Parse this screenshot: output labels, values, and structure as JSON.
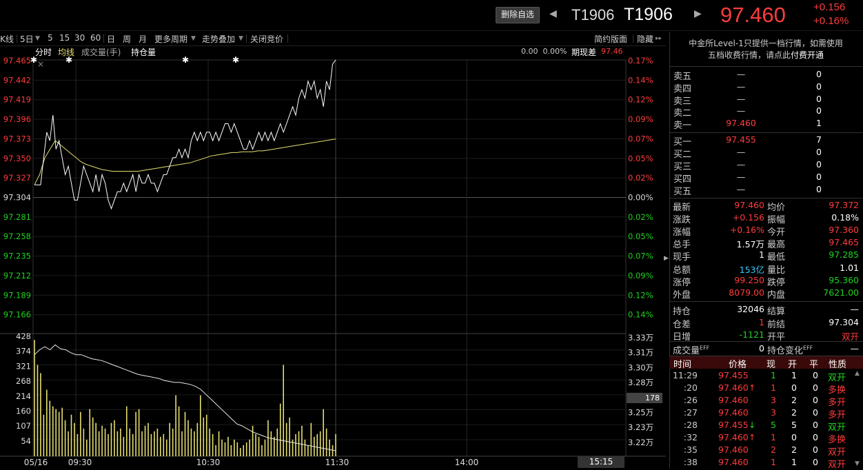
{
  "header": {
    "remove_watch_label": "删除自选",
    "code_small": "T1906",
    "code_large": "T1906",
    "last_price": "97.460",
    "change": "+0.156",
    "change_pct": "+0.16%"
  },
  "toolbar": {
    "items": [
      "K线",
      "5日",
      "5",
      "15",
      "30",
      "60",
      "日",
      "周",
      "月",
      "更多周期",
      "走势叠加",
      "关闭竞价"
    ],
    "right_items": [
      "简约版面",
      "隐藏"
    ]
  },
  "chart_header": {
    "tabs": [
      "分时",
      "均线",
      "成交量(手)",
      "持仓量"
    ],
    "readout": "0.00  0.00%",
    "basis_label": "期现差",
    "basis_value": "97.46"
  },
  "price_axis": [
    "97.465",
    "97.442",
    "97.419",
    "97.396",
    "97.373",
    "97.350",
    "97.327",
    "97.304",
    "97.281",
    "97.258",
    "97.235",
    "97.212",
    "97.189",
    "97.166"
  ],
  "pct_axis": [
    "0.17%",
    "0.14%",
    "0.12%",
    "0.09%",
    "0.07%",
    "0.05%",
    "0.02%",
    "0.00%",
    "0.02%",
    "0.05%",
    "0.07%",
    "0.09%",
    "0.12%",
    "0.14%"
  ],
  "vol_axis": [
    "428",
    "374",
    "321",
    "268",
    "214",
    "160",
    "107",
    "54"
  ],
  "oi_axis": [
    "3.33万",
    "3.31万",
    "3.30万",
    "3.28万",
    "3.26万",
    "3.25万",
    "3.23万",
    "3.22万"
  ],
  "vol_cursor": "178",
  "time_axis": [
    "05/16",
    "09:30",
    "10:30",
    "11:30",
    "14:00",
    "15:15"
  ],
  "panel": {
    "notice_line1": "中金所Level-1只提供一档行情，如需使用",
    "notice_line2": "五档收费行情，请点此",
    "notice_link": "付费开通",
    "asks": [
      {
        "label": "卖五",
        "price": "—",
        "vol": "0"
      },
      {
        "label": "卖四",
        "price": "—",
        "vol": "0"
      },
      {
        "label": "卖三",
        "price": "—",
        "vol": "0"
      },
      {
        "label": "卖二",
        "price": "—",
        "vol": "0"
      },
      {
        "label": "卖一",
        "price": "97.460",
        "vol": "1"
      }
    ],
    "bids": [
      {
        "label": "买一",
        "price": "97.455",
        "vol": "7"
      },
      {
        "label": "买二",
        "price": "—",
        "vol": "0"
      },
      {
        "label": "买三",
        "price": "—",
        "vol": "0"
      },
      {
        "label": "买四",
        "price": "—",
        "vol": "0"
      },
      {
        "label": "买五",
        "price": "—",
        "vol": "0"
      }
    ],
    "stats": [
      {
        "l1": "最新",
        "v1": "97.460",
        "c1": "red",
        "l2": "均价",
        "v2": "97.372",
        "c2": "red"
      },
      {
        "l1": "涨跌",
        "v1": "+0.156",
        "c1": "red",
        "l2": "振幅",
        "v2": "0.18%",
        "c2": "white"
      },
      {
        "l1": "涨幅",
        "v1": "+0.16%",
        "c1": "red",
        "l2": "今开",
        "v2": "97.360",
        "c2": "red"
      },
      {
        "l1": "总手",
        "v1": "1.57万",
        "c1": "white",
        "l2": "最高",
        "v2": "97.465",
        "c2": "red"
      },
      {
        "l1": "现手",
        "v1": "1",
        "c1": "white",
        "l2": "最低",
        "v2": "97.285",
        "c2": "green"
      },
      {
        "l1": "总额",
        "v1": "153亿",
        "c1": "cyan",
        "l2": "量比",
        "v2": "1.01",
        "c2": "white"
      },
      {
        "l1": "涨停",
        "v1": "99.250",
        "c1": "red",
        "l2": "跌停",
        "v2": "95.360",
        "c2": "green"
      },
      {
        "l1": "外盘",
        "v1": "8079.00",
        "c1": "red",
        "l2": "内盘",
        "v2": "7621.00",
        "c2": "green"
      }
    ],
    "oi_stats": [
      {
        "l1": "持仓",
        "v1": "32046",
        "c1": "white",
        "l2": "结算",
        "v2": "—",
        "c2": "white"
      },
      {
        "l1": "仓差",
        "v1": "1",
        "c1": "red",
        "l2": "前结",
        "v2": "97.304",
        "c2": "white"
      },
      {
        "l1": "日增",
        "v1": "-1121",
        "c1": "green",
        "l2": "开平",
        "v2": "双开",
        "c2": "red"
      }
    ],
    "eff_row": {
      "l1": "成交量",
      "sup1": "EFF",
      "v1": "0",
      "l2": "持仓变化",
      "sup2": "EFF",
      "v2": "—"
    },
    "trade_header": [
      "时间",
      "价格",
      "现",
      "开",
      "平",
      "性质"
    ],
    "trades": [
      {
        "time": "11:29",
        "price": "97.455",
        "arrow": "",
        "pc": "red",
        "now": "1",
        "nc": "green",
        "open": "1",
        "close": "0",
        "nature": "双开",
        "tc": "green"
      },
      {
        "time": ":20",
        "price": "97.460",
        "arrow": "↑",
        "pc": "red",
        "now": "1",
        "nc": "red",
        "open": "0",
        "close": "0",
        "nature": "多换",
        "tc": "red"
      },
      {
        "time": ":26",
        "price": "97.460",
        "arrow": "",
        "pc": "red",
        "now": "3",
        "nc": "red",
        "open": "2",
        "close": "0",
        "nature": "多开",
        "tc": "red"
      },
      {
        "time": ":27",
        "price": "97.460",
        "arrow": "",
        "pc": "red",
        "now": "3",
        "nc": "red",
        "open": "2",
        "close": "0",
        "nature": "多开",
        "tc": "red"
      },
      {
        "time": ":28",
        "price": "97.455",
        "arrow": "↓",
        "pc": "red",
        "now": "5",
        "nc": "green",
        "open": "5",
        "close": "0",
        "nature": "双开",
        "tc": "green"
      },
      {
        "time": ":32",
        "price": "97.460",
        "arrow": "↑",
        "pc": "red",
        "now": "1",
        "nc": "red",
        "open": "0",
        "close": "0",
        "nature": "多换",
        "tc": "red"
      },
      {
        "time": ":35",
        "price": "97.460",
        "arrow": "",
        "pc": "red",
        "now": "2",
        "nc": "red",
        "open": "2",
        "close": "0",
        "nature": "双开",
        "tc": "red"
      },
      {
        "time": ":38",
        "price": "97.460",
        "arrow": "",
        "pc": "red",
        "now": "1",
        "nc": "red",
        "open": "1",
        "close": "0",
        "nature": "双开",
        "tc": "red"
      }
    ]
  },
  "chart_data": {
    "type": "line",
    "title": "",
    "xlabel": "",
    "ylabel": "",
    "prev_settle": 97.304,
    "ylim": [
      97.143,
      97.465
    ],
    "session_x": [
      "09:15",
      "15:15"
    ],
    "price": [
      97.318,
      97.318,
      97.318,
      97.35,
      97.38,
      97.37,
      97.4,
      97.36,
      97.37,
      97.35,
      97.33,
      97.34,
      97.32,
      97.3,
      97.3,
      97.32,
      97.34,
      97.33,
      97.32,
      97.31,
      97.33,
      97.31,
      97.33,
      97.32,
      97.3,
      97.29,
      97.3,
      97.31,
      97.31,
      97.32,
      97.31,
      97.32,
      97.33,
      97.31,
      97.33,
      97.32,
      97.32,
      97.33,
      97.32,
      97.32,
      97.31,
      97.32,
      97.33,
      97.33,
      97.34,
      97.35,
      97.35,
      97.36,
      97.35,
      97.36,
      97.35,
      97.37,
      97.38,
      97.37,
      97.38,
      97.37,
      97.38,
      97.38,
      97.37,
      97.38,
      97.37,
      97.38,
      97.39,
      97.39,
      97.38,
      97.39,
      97.38,
      97.37,
      97.36,
      97.36,
      97.37,
      97.36,
      97.37,
      97.38,
      97.37,
      97.38,
      97.37,
      97.38,
      97.37,
      97.38,
      97.39,
      97.38,
      97.39,
      97.4,
      97.41,
      97.4,
      97.42,
      97.43,
      97.42,
      97.44,
      97.43,
      97.44,
      97.42,
      97.43,
      97.41,
      97.44,
      97.43,
      97.46,
      97.465
    ],
    "avg_price": [
      97.318,
      97.33,
      97.35,
      97.36,
      97.37,
      97.365,
      97.36,
      97.355,
      97.35,
      97.345,
      97.342,
      97.34,
      97.338,
      97.336,
      97.335,
      97.334,
      97.334,
      97.334,
      97.334,
      97.334,
      97.334,
      97.335,
      97.336,
      97.337,
      97.338,
      97.339,
      97.34,
      97.341,
      97.342,
      97.343,
      97.344,
      97.346,
      97.348,
      97.35,
      97.352,
      97.353,
      97.354,
      97.355,
      97.356,
      97.356,
      97.357,
      97.357,
      97.357,
      97.358,
      97.358,
      97.359,
      97.36,
      97.361,
      97.362,
      97.363,
      97.364,
      97.365,
      97.366,
      97.367,
      97.368,
      97.369,
      97.37,
      97.371,
      97.372
    ],
    "oi_wan": [
      3.31,
      3.315,
      3.318,
      3.315,
      3.32,
      3.316,
      3.315,
      3.312,
      3.31,
      3.31,
      3.308,
      3.306,
      3.305,
      3.304,
      3.302,
      3.3,
      3.298,
      3.296,
      3.294,
      3.292,
      3.29,
      3.289,
      3.288,
      3.287,
      3.286,
      3.284,
      3.283,
      3.282,
      3.282,
      3.281,
      3.28,
      3.278,
      3.275,
      3.27,
      3.265,
      3.26,
      3.255,
      3.25,
      3.245,
      3.24,
      3.238,
      3.235,
      3.232,
      3.23,
      3.228,
      3.226,
      3.225,
      3.224,
      3.223,
      3.222,
      3.221,
      3.22,
      3.219,
      3.218,
      3.217,
      3.216,
      3.215,
      3.214,
      3.213
    ],
    "volume": [
      420,
      330,
      300,
      150,
      240,
      200,
      180,
      170,
      160,
      175,
      130,
      90,
      150,
      120,
      80,
      160,
      100,
      60,
      170,
      140,
      120,
      90,
      110,
      100,
      80,
      120,
      130,
      90,
      100,
      70,
      180,
      100,
      80,
      160,
      170,
      90,
      110,
      120,
      80,
      90,
      100,
      70,
      80,
      60,
      120,
      100,
      220,
      180,
      90,
      160,
      130,
      100,
      90,
      120,
      220,
      140,
      150,
      100,
      80,
      40,
      90,
      60,
      50,
      70,
      40,
      60,
      50,
      30,
      40,
      50,
      60,
      110,
      80,
      70,
      40,
      60,
      130,
      90,
      70,
      100,
      190,
      330,
      120,
      140,
      60,
      80,
      90,
      110,
      60,
      40,
      120,
      70,
      80,
      90,
      170,
      100,
      60,
      40,
      80
    ]
  }
}
